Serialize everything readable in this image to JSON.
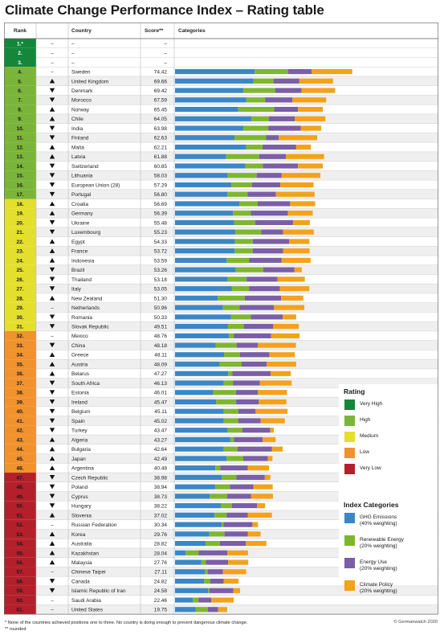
{
  "title": "Climate Change Performance Index – Rating table",
  "headers": {
    "rank": "Rank",
    "country": "Country",
    "score": "Score**",
    "categories": "Categories"
  },
  "colors": {
    "very_high": "#14873b",
    "high": "#7bb43a",
    "medium": "#e4df2c",
    "low": "#f0922e",
    "very_low": "#b3202b",
    "ghg": "#3b86c6",
    "renewable": "#7eb72f",
    "energy_use": "#7a5ea6",
    "policy": "#f4a11b"
  },
  "empty_rows": [
    {
      "rank": "1.*",
      "trend": "–",
      "country": "–",
      "score": "–"
    },
    {
      "rank": "2.",
      "trend": "–",
      "country": "–",
      "score": "–"
    },
    {
      "rank": "3.",
      "trend": "–",
      "country": "–",
      "score": "–"
    }
  ],
  "chart_data": {
    "type": "bar",
    "stacked": true,
    "orientation": "horizontal",
    "series_names": [
      "GHG Emissions",
      "Renewable Energy",
      "Energy Use",
      "Climate Policy"
    ],
    "rows": [
      {
        "rank": "4.",
        "trend": "–",
        "country": "Sweden",
        "score": "74.42",
        "rating": "high",
        "values": [
          30.2,
          12.7,
          9.0,
          15.4
        ]
      },
      {
        "rank": "5.",
        "trend": "▲",
        "country": "United Kingdom",
        "score": "69.66",
        "rating": "high",
        "values": [
          29.8,
          7.6,
          9.8,
          12.8
        ]
      },
      {
        "rank": "6.",
        "trend": "▼",
        "country": "Denmark",
        "score": "69.42",
        "rating": "high",
        "values": [
          26.0,
          12.0,
          10.0,
          12.8
        ]
      },
      {
        "rank": "7.",
        "trend": "▼",
        "country": "Morocco",
        "score": "67.59",
        "rating": "high",
        "values": [
          27.0,
          7.2,
          10.4,
          12.8
        ]
      },
      {
        "rank": "8.",
        "trend": "▲",
        "country": "Norway",
        "score": "65.45",
        "rating": "high",
        "values": [
          24.0,
          13.6,
          9.1,
          9.4
        ]
      },
      {
        "rank": "9.",
        "trend": "▲",
        "country": "Chile",
        "score": "64.05",
        "rating": "high",
        "values": [
          29.0,
          6.6,
          9.9,
          11.6
        ]
      },
      {
        "rank": "10.",
        "trend": "▼",
        "country": "India",
        "score": "63.98",
        "rating": "high",
        "values": [
          26.0,
          9.4,
          12.4,
          7.7
        ]
      },
      {
        "rank": "11.",
        "trend": "▼",
        "country": "Finland",
        "score": "62.63",
        "rating": "high",
        "values": [
          22.6,
          12.0,
          4.8,
          14.6
        ]
      },
      {
        "rank": "12.",
        "trend": "▲",
        "country": "Malta",
        "score": "62.21",
        "rating": "high",
        "values": [
          27.0,
          6.2,
          12.8,
          5.6
        ]
      },
      {
        "rank": "13.",
        "trend": "▲",
        "country": "Latvia",
        "score": "61.88",
        "rating": "high",
        "values": [
          19.4,
          12.6,
          10.1,
          14.5
        ]
      },
      {
        "rank": "14.",
        "trend": "▼",
        "country": "Switzerland",
        "score": "60.85",
        "rating": "high",
        "values": [
          26.7,
          6.6,
          13.4,
          9.4
        ]
      },
      {
        "rank": "15.",
        "trend": "▼",
        "country": "Lithuania",
        "score": "58.03",
        "rating": "high",
        "values": [
          20.0,
          11.0,
          9.4,
          14.8
        ]
      },
      {
        "rank": "16.",
        "trend": "▼",
        "country": "European Union (28)",
        "score": "57.29",
        "rating": "high",
        "values": [
          21.4,
          7.8,
          10.8,
          12.6
        ]
      },
      {
        "rank": "17.",
        "trend": "▼",
        "country": "Portugal",
        "score": "56.80",
        "rating": "high",
        "values": [
          19.9,
          7.6,
          10.8,
          14.7
        ]
      },
      {
        "rank": "18.",
        "trend": "▲",
        "country": "Croatia",
        "score": "56.69",
        "rating": "medium",
        "values": [
          24.4,
          7.0,
          12.3,
          9.5
        ]
      },
      {
        "rank": "19.",
        "trend": "▲",
        "country": "Germany",
        "score": "56.39",
        "rating": "medium",
        "values": [
          22.0,
          6.8,
          14.1,
          9.4
        ]
      },
      {
        "rank": "20.",
        "trend": "▼",
        "country": "Ukraine",
        "score": "55.48",
        "rating": "medium",
        "values": [
          22.4,
          8.0,
          14.4,
          6.4
        ]
      },
      {
        "rank": "21.",
        "trend": "▼",
        "country": "Luxembourg",
        "score": "55.23",
        "rating": "medium",
        "values": [
          22.9,
          9.9,
          8.2,
          11.7
        ]
      },
      {
        "rank": "22.",
        "trend": "▲",
        "country": "Egypt",
        "score": "54.33",
        "rating": "medium",
        "values": [
          22.7,
          6.8,
          13.8,
          7.7
        ]
      },
      {
        "rank": "23.",
        "trend": "▲",
        "country": "France",
        "score": "53.72",
        "rating": "medium",
        "values": [
          22.6,
          6.9,
          11.5,
          10.1
        ]
      },
      {
        "rank": "24.",
        "trend": "▲",
        "country": "Indonesia",
        "score": "53.59",
        "rating": "medium",
        "values": [
          19.6,
          8.5,
          12.4,
          11.0
        ]
      },
      {
        "rank": "25.",
        "trend": "▼",
        "country": "Brazil",
        "score": "53.26",
        "rating": "medium",
        "values": [
          23.0,
          10.5,
          11.8,
          2.8
        ]
      },
      {
        "rank": "26.",
        "trend": "▼",
        "country": "Thailand",
        "score": "53.18",
        "rating": "medium",
        "values": [
          20.0,
          7.2,
          11.7,
          10.4
        ]
      },
      {
        "rank": "27.",
        "trend": "▼",
        "country": "Italy",
        "score": "53.05",
        "rating": "medium",
        "values": [
          21.6,
          6.5,
          11.7,
          11.2
        ]
      },
      {
        "rank": "28.",
        "trend": "▲",
        "country": "New Zealand",
        "score": "51.30",
        "rating": "medium",
        "values": [
          16.2,
          10.3,
          13.8,
          8.4
        ]
      },
      {
        "rank": "29.",
        "trend": "–",
        "country": "Netherlands",
        "score": "50.96",
        "rating": "medium",
        "values": [
          18.2,
          6.3,
          13.1,
          11.5
        ]
      },
      {
        "rank": "30.",
        "trend": "▼",
        "country": "Romania",
        "score": "50.33",
        "rating": "medium",
        "values": [
          21.3,
          7.5,
          12.1,
          5.1
        ]
      },
      {
        "rank": "31.",
        "trend": "▼",
        "country": "Slovak Republic",
        "score": "49.51",
        "rating": "medium",
        "values": [
          20.1,
          6.0,
          11.2,
          9.7
        ]
      },
      {
        "rank": "32.",
        "trend": "–",
        "country": "Mexico",
        "score": "48.76",
        "rating": "low",
        "values": [
          20.5,
          1.8,
          14.2,
          10.8
        ]
      },
      {
        "rank": "33.",
        "trend": "▼",
        "country": "China",
        "score": "48.18",
        "rating": "low",
        "values": [
          15.5,
          7.9,
          8.0,
          14.5
        ]
      },
      {
        "rank": "34.",
        "trend": "▲",
        "country": "Greece",
        "score": "48.11",
        "rating": "low",
        "values": [
          18.6,
          6.0,
          11.2,
          9.7
        ]
      },
      {
        "rank": "35.",
        "trend": "▲",
        "country": "Austria",
        "score": "48.09",
        "rating": "low",
        "values": [
          16.9,
          8.4,
          9.5,
          11.2
        ]
      },
      {
        "rank": "36.",
        "trend": "▲",
        "country": "Belarus",
        "score": "47.27",
        "rating": "low",
        "values": [
          20.2,
          1.6,
          14.5,
          7.7
        ]
      },
      {
        "rank": "37.",
        "trend": "▼",
        "country": "South Africa",
        "score": "46.13",
        "rating": "low",
        "values": [
          18.5,
          3.5,
          10.2,
          12.1
        ]
      },
      {
        "rank": "38.",
        "trend": "▼",
        "country": "Estonia",
        "score": "46.01",
        "rating": "low",
        "values": [
          14.5,
          8.6,
          8.4,
          11.0
        ]
      },
      {
        "rank": "39.",
        "trend": "▼",
        "country": "Ireland",
        "score": "45.47",
        "rating": "low",
        "values": [
          15.6,
          7.6,
          8.6,
          10.5
        ]
      },
      {
        "rank": "40.",
        "trend": "▼",
        "country": "Belgium",
        "score": "45.11",
        "rating": "low",
        "values": [
          18.5,
          5.5,
          6.6,
          12.1
        ]
      },
      {
        "rank": "41.",
        "trend": "▼",
        "country": "Spain",
        "score": "45.02",
        "rating": "low",
        "values": [
          18.5,
          5.5,
          8.5,
          9.2
        ]
      },
      {
        "rank": "42.",
        "trend": "▼",
        "country": "Turkey",
        "score": "43.47",
        "rating": "low",
        "values": [
          20.0,
          5.5,
          10.6,
          1.4
        ]
      },
      {
        "rank": "43.",
        "trend": "▲",
        "country": "Algeria",
        "score": "43.27",
        "rating": "low",
        "values": [
          21.0,
          1.4,
          10.9,
          4.9
        ]
      },
      {
        "rank": "44.",
        "trend": "▲",
        "country": "Bulgaria",
        "score": "42.64",
        "rating": "low",
        "values": [
          18.5,
          5.2,
          13.1,
          4.1
        ]
      },
      {
        "rank": "45.",
        "trend": "▲",
        "country": "Japan",
        "score": "42.49",
        "rating": "low",
        "values": [
          19.5,
          6.4,
          9.3,
          1.8
        ]
      },
      {
        "rank": "46.",
        "trend": "▲",
        "country": "Argentina",
        "score": "40.48",
        "rating": "low",
        "values": [
          15.3,
          1.9,
          10.4,
          8.1
        ]
      },
      {
        "rank": "47.",
        "trend": "▼",
        "country": "Czech Republic",
        "score": "38.98",
        "rating": "very_low",
        "values": [
          17.8,
          5.5,
          10.8,
          2.1
        ]
      },
      {
        "rank": "48.",
        "trend": "▼",
        "country": "Poland",
        "score": "38.94",
        "rating": "very_low",
        "values": [
          15.3,
          5.5,
          9.0,
          7.3
        ]
      },
      {
        "rank": "49.",
        "trend": "▼",
        "country": "Cyprus",
        "score": "38.73",
        "rating": "very_low",
        "values": [
          13.2,
          6.6,
          9.1,
          8.3
        ]
      },
      {
        "rank": "50.",
        "trend": "▼",
        "country": "Hungary",
        "score": "38.22",
        "rating": "very_low",
        "values": [
          17.4,
          4.2,
          9.5,
          3.1
        ]
      },
      {
        "rank": "51.",
        "trend": "▲",
        "country": "Slovenia",
        "score": "37.02",
        "rating": "very_low",
        "values": [
          15.0,
          4.6,
          8.0,
          9.2
        ]
      },
      {
        "rank": "52.",
        "trend": "–",
        "country": "Russian Federation",
        "score": "30.34",
        "rating": "very_low",
        "values": [
          17.7,
          0.7,
          11.0,
          2.1
        ]
      },
      {
        "rank": "53.",
        "trend": "▲",
        "country": "Korea",
        "score": "29.76",
        "rating": "very_low",
        "values": [
          13.0,
          5.8,
          8.8,
          4.9
        ]
      },
      {
        "rank": "54.",
        "trend": "▲",
        "country": "Australia",
        "score": "28.82",
        "rating": "very_low",
        "values": [
          11.6,
          5.4,
          9.9,
          7.8
        ]
      },
      {
        "rank": "55.",
        "trend": "▲",
        "country": "Kazakhstan",
        "score": "28.04",
        "rating": "very_low",
        "values": [
          4.0,
          5.0,
          10.9,
          7.8
        ]
      },
      {
        "rank": "56.",
        "trend": "▲",
        "country": "Malaysia",
        "score": "27.76",
        "rating": "very_low",
        "values": [
          10.0,
          1.7,
          8.5,
          7.6
        ]
      },
      {
        "rank": "57.",
        "trend": "–",
        "country": "Chinese Taipei",
        "score": "27.11",
        "rating": "very_low",
        "values": [
          11.3,
          1.1,
          5.8,
          8.8
        ]
      },
      {
        "rank": "58.",
        "trend": "▼",
        "country": "Canada",
        "score": "24.82",
        "rating": "very_low",
        "values": [
          11.0,
          2.3,
          5.2,
          5.6
        ]
      },
      {
        "rank": "59.",
        "trend": "▼",
        "country": "Islamic Republic of Iran",
        "score": "24.58",
        "rating": "very_low",
        "values": [
          12.6,
          0.5,
          9.0,
          2.6
        ]
      },
      {
        "rank": "60.",
        "trend": "–",
        "country": "Saudi Arabia",
        "score": "22.46",
        "rating": "very_low",
        "values": [
          6.8,
          2.1,
          4.9,
          8.5
        ]
      },
      {
        "rank": "61.",
        "trend": "–",
        "country": "United States",
        "score": "19.75",
        "rating": "very_low",
        "values": [
          7.9,
          4.6,
          3.8,
          3.5
        ]
      }
    ]
  },
  "legend": {
    "rating_title": "Rating",
    "rating_items": [
      {
        "key": "very_high",
        "label": "Very High"
      },
      {
        "key": "high",
        "label": "High"
      },
      {
        "key": "medium",
        "label": "Medium"
      },
      {
        "key": "low",
        "label": "Low"
      },
      {
        "key": "very_low",
        "label": "Very Low"
      }
    ],
    "categories_title": "Index Categories",
    "category_items": [
      {
        "key": "ghg",
        "line1": "GHG Emissions",
        "line2": "(40% weighting)"
      },
      {
        "key": "renewable",
        "line1": "Renewable Energy",
        "line2": "(20% weighting)"
      },
      {
        "key": "energy_use",
        "line1": "Energy Use",
        "line2": "(20% weighting)"
      },
      {
        "key": "policy",
        "line1": "Climate Policy",
        "line2": "(20% weighting)"
      }
    ]
  },
  "footnotes": [
    "* None of the countries achieved positions one to three. No country is doing enough to prevent dangerous climate change.",
    "** rounded"
  ],
  "credit": "© Germanwatch 2020"
}
